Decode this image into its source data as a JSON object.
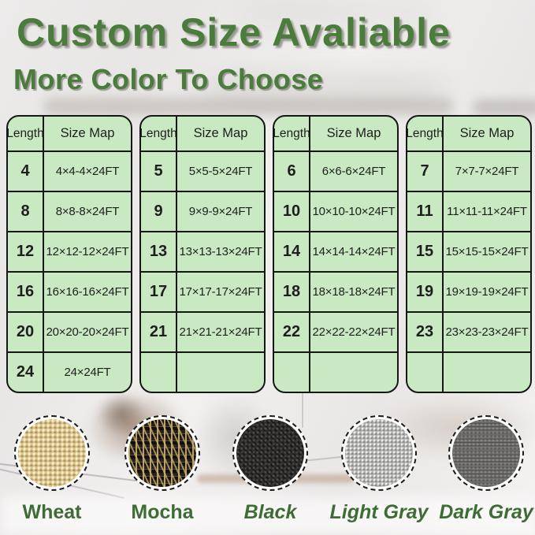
{
  "page": {
    "title": "Custom Size Avaliable",
    "subtitle": "More Color To Choose"
  },
  "size_tables": {
    "column_headers": [
      "Length",
      "Size Map"
    ],
    "tables": [
      {
        "rows": [
          {
            "length": "4",
            "size_map": "4×4-4×24FT"
          },
          {
            "length": "8",
            "size_map": "8×8-8×24FT"
          },
          {
            "length": "12",
            "size_map": "12×12-12×24FT"
          },
          {
            "length": "16",
            "size_map": "16×16-16×24FT"
          },
          {
            "length": "20",
            "size_map": "20×20-20×24FT"
          },
          {
            "length": "24",
            "size_map": "24×24FT"
          }
        ]
      },
      {
        "rows": [
          {
            "length": "5",
            "size_map": "5×5-5×24FT"
          },
          {
            "length": "9",
            "size_map": "9×9-9×24FT"
          },
          {
            "length": "13",
            "size_map": "13×13-13×24FT"
          },
          {
            "length": "17",
            "size_map": "17×17-17×24FT"
          },
          {
            "length": "21",
            "size_map": "21×21-21×24FT"
          },
          {
            "length": "",
            "size_map": ""
          }
        ]
      },
      {
        "rows": [
          {
            "length": "6",
            "size_map": "6×6-6×24FT"
          },
          {
            "length": "10",
            "size_map": "10×10-10×24FT"
          },
          {
            "length": "14",
            "size_map": "14×14-14×24FT"
          },
          {
            "length": "18",
            "size_map": "18×18-18×24FT"
          },
          {
            "length": "22",
            "size_map": "22×22-22×24FT"
          },
          {
            "length": "",
            "size_map": ""
          }
        ]
      },
      {
        "rows": [
          {
            "length": "7",
            "size_map": "7×7-7×24FT"
          },
          {
            "length": "11",
            "size_map": "11×11-11×24FT"
          },
          {
            "length": "15",
            "size_map": "15×15-15×24FT"
          },
          {
            "length": "19",
            "size_map": "19×19-19×24FT"
          },
          {
            "length": "23",
            "size_map": "23×23-23×24FT"
          },
          {
            "length": "",
            "size_map": ""
          }
        ]
      }
    ]
  },
  "color_options": {
    "items": [
      {
        "label": "Wheat",
        "swatch": "wheat",
        "base_color": "#d9c38c",
        "italic": false
      },
      {
        "label": "Mocha",
        "swatch": "mocha",
        "base_color": "#26211a",
        "italic": false
      },
      {
        "label": "Black",
        "swatch": "black",
        "base_color": "#2d2c2a",
        "italic": true
      },
      {
        "label": "Light Gray",
        "swatch": "light-gray",
        "base_color": "#b5b5b3",
        "italic": true
      },
      {
        "label": "Dark Gray",
        "swatch": "dark-gray",
        "base_color": "#696866",
        "italic": true
      }
    ]
  },
  "palette": {
    "heading_green": "#4a7c3c",
    "label_green": "#3e6c35",
    "table_bg": "#c9e9c2",
    "table_border": "#161616"
  }
}
